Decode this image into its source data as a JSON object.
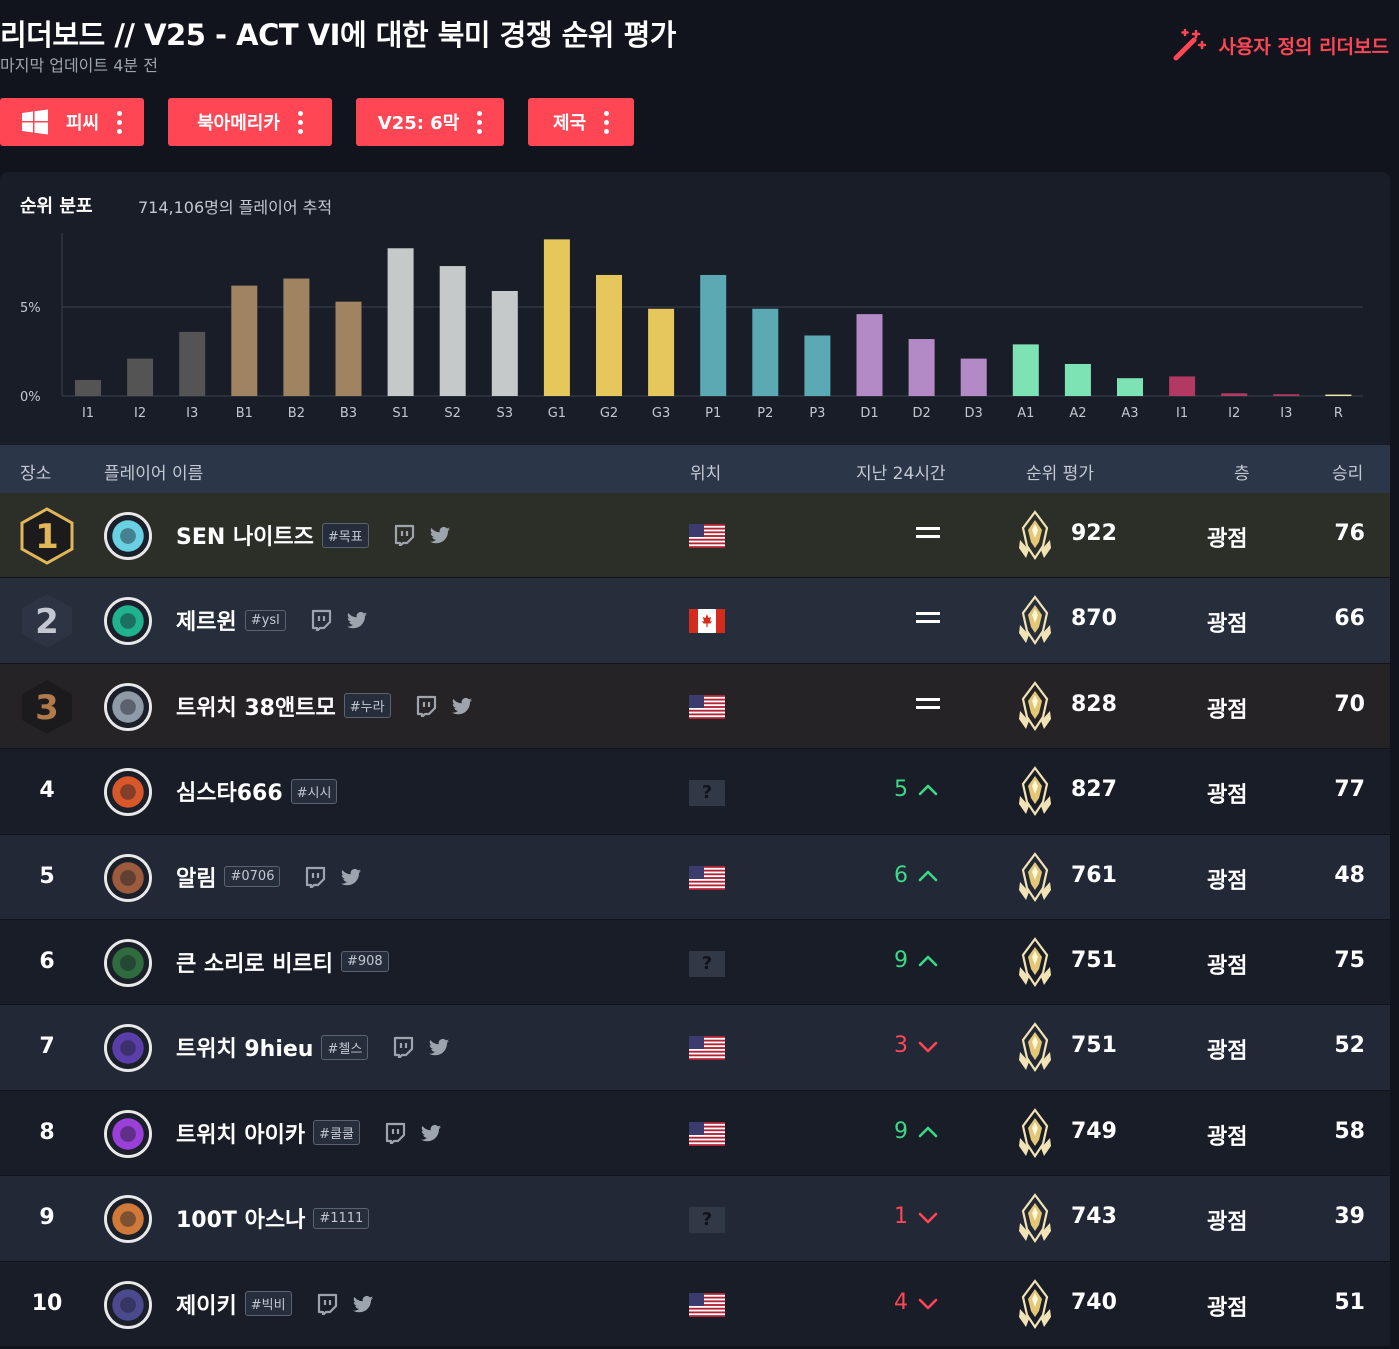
{
  "header": {
    "title": "리더보드 // V25 - ACT VI에 대한 북미 경쟁 순위 평가",
    "updated": "마지막 업데이트 4분 전",
    "custom_leaderboard": "사용자 정의 리더보드",
    "custom_icon": "magic-wand-icon"
  },
  "filters": [
    {
      "label": "피씨",
      "icon": "windows-icon"
    },
    {
      "label": "북아메리카"
    },
    {
      "label": "V25: 6막"
    },
    {
      "label": "제국"
    }
  ],
  "distribution": {
    "title": "순위 분포",
    "subtitle": "714,106명의 플레이어 추적"
  },
  "chart_data": {
    "type": "bar",
    "title": "",
    "xlabel": "",
    "ylabel": "",
    "categories": [
      "I1",
      "I2",
      "I3",
      "B1",
      "B2",
      "B3",
      "S1",
      "S2",
      "S3",
      "G1",
      "G2",
      "G3",
      "P1",
      "P2",
      "P3",
      "D1",
      "D2",
      "D3",
      "A1",
      "A2",
      "A3",
      "I1",
      "I2",
      "I3",
      "R"
    ],
    "values": [
      0.9,
      2.1,
      3.6,
      6.2,
      6.6,
      5.3,
      8.3,
      7.3,
      5.9,
      8.8,
      6.8,
      4.9,
      6.8,
      4.9,
      3.4,
      4.6,
      3.2,
      2.1,
      2.9,
      1.8,
      1.0,
      1.1,
      0.15,
      0.1,
      0.08
    ],
    "colors": [
      "#545454",
      "#545454",
      "#545454",
      "#a08462",
      "#a08462",
      "#a08462",
      "#c5c9c9",
      "#c5c9c9",
      "#c5c9c9",
      "#e6c75c",
      "#e6c75c",
      "#e6c75c",
      "#5aa9b3",
      "#5aa9b3",
      "#5aa9b3",
      "#b48ac6",
      "#b48ac6",
      "#b48ac6",
      "#7de3b4",
      "#7de3b4",
      "#7de3b4",
      "#b23a62",
      "#b23a62",
      "#b23a62",
      "#efe9b0"
    ],
    "ytick_labels": [
      "5%",
      "0%"
    ],
    "yticks": [
      5,
      0
    ],
    "ylim": [
      0,
      9.0
    ],
    "grid": true,
    "legend": "none"
  },
  "table": {
    "headers": {
      "place": "장소",
      "player": "플레이어 이름",
      "location": "위치",
      "last24": "지난 24시간",
      "rating": "순위 평가",
      "tier": "층",
      "wins": "승리"
    },
    "unknown_flag": "?",
    "rows": [
      {
        "rank": "1",
        "name": "SEN 나이트즈",
        "tag": "#목표",
        "social": true,
        "flag": "us",
        "change": "=",
        "change_dir": "same",
        "rr": "922",
        "tier": "광점",
        "wins": "76",
        "row_bg": "#2c2f28",
        "avatar_color": "#6ad1e3"
      },
      {
        "rank": "2",
        "name": "제르윈",
        "tag": "#ysl",
        "social": true,
        "flag": "ca",
        "change": "=",
        "change_dir": "same",
        "rr": "870",
        "tier": "광점",
        "wins": "66",
        "row_bg": "#262d3b",
        "avatar_color": "#1fb38f"
      },
      {
        "rank": "3",
        "name": "트위치 38앤트모",
        "tag": "#누라",
        "social": true,
        "flag": "us",
        "change": "=",
        "change_dir": "same",
        "rr": "828",
        "tier": "광점",
        "wins": "70",
        "row_bg": "#262326",
        "avatar_color": "#8e9aa8"
      },
      {
        "rank": "4",
        "name": "심스타666",
        "tag": "#시시",
        "social": false,
        "flag": "unknown",
        "change": "5",
        "change_dir": "up",
        "rr": "827",
        "tier": "광점",
        "wins": "77",
        "row_bg": "#191d27",
        "avatar_color": "#d9582a"
      },
      {
        "rank": "5",
        "name": "알림",
        "tag": "#0706",
        "social": true,
        "flag": "us",
        "change": "6",
        "change_dir": "up",
        "rr": "761",
        "tier": "광점",
        "wins": "48",
        "row_bg": "#222836",
        "avatar_color": "#9b5b3c"
      },
      {
        "rank": "6",
        "name": "큰 소리로 비르티",
        "tag": "#908",
        "social": false,
        "flag": "unknown",
        "change": "9",
        "change_dir": "up",
        "rr": "751",
        "tier": "광점",
        "wins": "75",
        "row_bg": "#191d27",
        "avatar_color": "#2f6b3f"
      },
      {
        "rank": "7",
        "name": "트위치 9hieu",
        "tag": "#첼스",
        "social": true,
        "flag": "us",
        "change": "3",
        "change_dir": "down",
        "rr": "751",
        "tier": "광점",
        "wins": "52",
        "row_bg": "#222836",
        "avatar_color": "#5b3fa8"
      },
      {
        "rank": "8",
        "name": "트위치 아이카",
        "tag": "#쿨쿨",
        "social": true,
        "flag": "us",
        "change": "9",
        "change_dir": "up",
        "rr": "749",
        "tier": "광점",
        "wins": "58",
        "row_bg": "#191d27",
        "avatar_color": "#9a3fd8"
      },
      {
        "rank": "9",
        "name": "100T 아스나",
        "tag": "#1111",
        "social": false,
        "flag": "unknown",
        "change": "1",
        "change_dir": "down",
        "rr": "743",
        "tier": "광점",
        "wins": "39",
        "row_bg": "#222836",
        "avatar_color": "#d07a3a"
      },
      {
        "rank": "10",
        "name": "제이키",
        "tag": "#빅비",
        "social": true,
        "flag": "us",
        "change": "4",
        "change_dir": "down",
        "rr": "740",
        "tier": "광점",
        "wins": "51",
        "row_bg": "#191d27",
        "avatar_color": "#4b4a8e"
      }
    ]
  },
  "colors": {
    "accent": "#ff4655",
    "up": "#3bda88",
    "down": "#ff4655",
    "rank1": "#e0b659",
    "rank2": "#c3c8d0",
    "rank3": "#b07a4b"
  }
}
